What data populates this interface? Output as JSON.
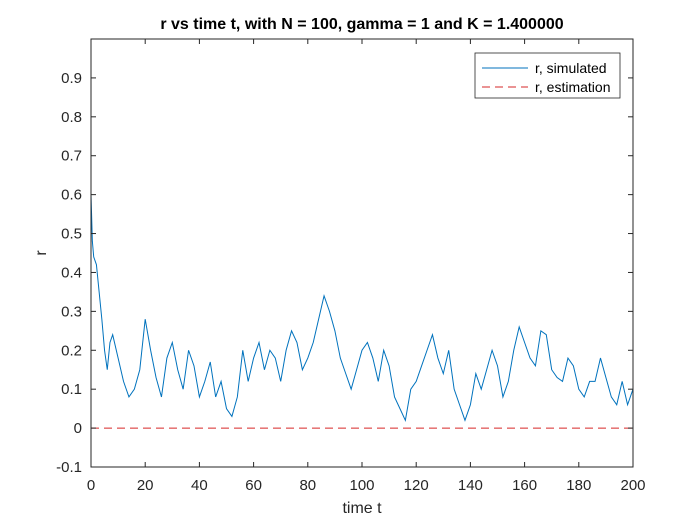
{
  "chart_data": {
    "type": "line",
    "title": "r vs time t, with N = 100, gamma = 1 and K = 1.400000",
    "xlabel": "time t",
    "ylabel": "r",
    "xlim": [
      0,
      200
    ],
    "ylim": [
      -0.1,
      1.0
    ],
    "x_ticks": [
      "0",
      "20",
      "40",
      "60",
      "80",
      "100",
      "120",
      "140",
      "160",
      "180",
      "200"
    ],
    "y_ticks": [
      "-0.1",
      "0",
      "0.1",
      "0.2",
      "0.3",
      "0.4",
      "0.5",
      "0.6",
      "0.7",
      "0.8",
      "0.9"
    ],
    "grid": false,
    "legend_position": "top-right",
    "series": [
      {
        "name": "r, simulated",
        "style": "solid",
        "color": "#0072BD",
        "x": [
          0,
          0.5,
          1,
          2,
          3,
          4,
          5,
          6,
          7,
          8,
          10,
          12,
          14,
          16,
          18,
          20,
          22,
          24,
          26,
          28,
          30,
          32,
          34,
          36,
          38,
          40,
          42,
          44,
          46,
          48,
          50,
          52,
          54,
          56,
          58,
          60,
          62,
          64,
          66,
          68,
          70,
          72,
          74,
          76,
          78,
          80,
          82,
          84,
          86,
          88,
          90,
          92,
          94,
          96,
          98,
          100,
          102,
          104,
          106,
          108,
          110,
          112,
          114,
          116,
          118,
          120,
          122,
          124,
          126,
          128,
          130,
          132,
          134,
          136,
          138,
          140,
          142,
          144,
          146,
          148,
          150,
          152,
          154,
          156,
          158,
          160,
          162,
          164,
          166,
          168,
          170,
          172,
          174,
          176,
          178,
          180,
          182,
          184,
          186,
          188,
          190,
          192,
          194,
          196,
          198,
          200
        ],
        "y": [
          0.6,
          0.48,
          0.44,
          0.42,
          0.35,
          0.28,
          0.2,
          0.15,
          0.22,
          0.24,
          0.18,
          0.12,
          0.08,
          0.1,
          0.15,
          0.28,
          0.2,
          0.13,
          0.08,
          0.18,
          0.22,
          0.15,
          0.1,
          0.2,
          0.16,
          0.08,
          0.12,
          0.17,
          0.08,
          0.12,
          0.05,
          0.03,
          0.08,
          0.2,
          0.12,
          0.18,
          0.22,
          0.15,
          0.2,
          0.18,
          0.12,
          0.2,
          0.25,
          0.22,
          0.15,
          0.18,
          0.22,
          0.28,
          0.34,
          0.3,
          0.25,
          0.18,
          0.14,
          0.1,
          0.15,
          0.2,
          0.22,
          0.18,
          0.12,
          0.2,
          0.16,
          0.08,
          0.05,
          0.02,
          0.1,
          0.12,
          0.16,
          0.2,
          0.24,
          0.18,
          0.14,
          0.2,
          0.1,
          0.06,
          0.02,
          0.06,
          0.14,
          0.1,
          0.15,
          0.2,
          0.16,
          0.08,
          0.12,
          0.2,
          0.26,
          0.22,
          0.18,
          0.16,
          0.25,
          0.24,
          0.15,
          0.13,
          0.12,
          0.18,
          0.16,
          0.1,
          0.08,
          0.12,
          0.12,
          0.18,
          0.13,
          0.08,
          0.06,
          0.12,
          0.06,
          0.1
        ]
      },
      {
        "name": "r, estimation",
        "style": "dashed",
        "color": "#D62728",
        "x": [
          0,
          200
        ],
        "y": [
          0,
          0
        ]
      }
    ]
  }
}
